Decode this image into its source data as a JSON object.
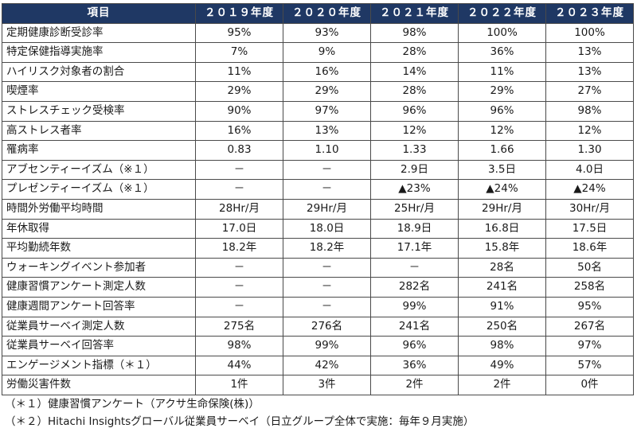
{
  "header": [
    "項目",
    "２０１９年度",
    "２０２０年度",
    "２０２１年度",
    "２０２２年度",
    "２０２３年度"
  ],
  "rows": [
    {
      "label": "定期健康診断受診率",
      "values": [
        "95%",
        "93%",
        "98%",
        "100%",
        "100%"
      ]
    },
    {
      "label": "特定保健指導実施率",
      "values": [
        "7%",
        "9%",
        "28%",
        "36%",
        "13%"
      ]
    },
    {
      "label": "ハイリスク対象者の割合",
      "values": [
        "11%",
        "16%",
        "14%",
        "11%",
        "13%"
      ]
    },
    {
      "label": "喫煙率",
      "values": [
        "29%",
        "29%",
        "28%",
        "29%",
        "27%"
      ]
    },
    {
      "label": "ストレスチェック受検率",
      "values": [
        "90%",
        "97%",
        "96%",
        "96%",
        "98%"
      ]
    },
    {
      "label": "高ストレス者率",
      "values": [
        "16%",
        "13%",
        "12%",
        "12%",
        "12%"
      ]
    },
    {
      "label": "罹病率",
      "values": [
        "0.83",
        "1.10",
        "1.33",
        "1.66",
        "1.30"
      ]
    },
    {
      "label": "アブセンティーイズム（※１）",
      "values": [
        "－",
        "－",
        "2.9日",
        "3.5日",
        "4.0日"
      ]
    },
    {
      "label": "プレゼンティーイズム（※１）",
      "values": [
        "－",
        "－",
        "▲23%",
        "▲24%",
        "▲24%"
      ]
    },
    {
      "label": "時間外労働平均時間",
      "values": [
        "28Hr/月",
        "29Hr/月",
        "25Hr/月",
        "29Hr/月",
        "30Hr/月"
      ]
    },
    {
      "label": "年休取得",
      "values": [
        "17.0日",
        "18.0日",
        "18.9日",
        "16.8日",
        "17.5日"
      ]
    },
    {
      "label": "平均勤続年数",
      "values": [
        "18.2年",
        "18.2年",
        "17.1年",
        "15.8年",
        "18.6年"
      ]
    },
    {
      "label": "ウォーキングイベント参加者",
      "values": [
        "－",
        "－",
        "－",
        "28名",
        "50名"
      ]
    },
    {
      "label": "健康習慣アンケート測定人数",
      "values": [
        "－",
        "－",
        "282名",
        "241名",
        "258名"
      ]
    },
    {
      "label": "健康週間アンケート回答率",
      "values": [
        "－",
        "－",
        "99%",
        "91%",
        "95%"
      ]
    },
    {
      "label": "従業員サーベイ測定人数",
      "values": [
        "275名",
        "276名",
        "241名",
        "250名",
        "267名"
      ]
    },
    {
      "label": "従業員サーベイ回答率",
      "values": [
        "98%",
        "99%",
        "96%",
        "98%",
        "97%"
      ]
    },
    {
      "label": "エンゲージメント指標（＊１）",
      "values": [
        "44%",
        "42%",
        "36%",
        "49%",
        "57%"
      ]
    },
    {
      "label": "労働災害件数",
      "values": [
        "1件",
        "3件",
        "2件",
        "2件",
        "0件"
      ]
    }
  ],
  "notes": [
    "（＊１）健康習慣アンケート（アクサ生命保険(株)）",
    "（＊２）Hitachi Insightsグローバル従業員サーベイ（日立グループ全体で実施：毎年９月実施）"
  ]
}
